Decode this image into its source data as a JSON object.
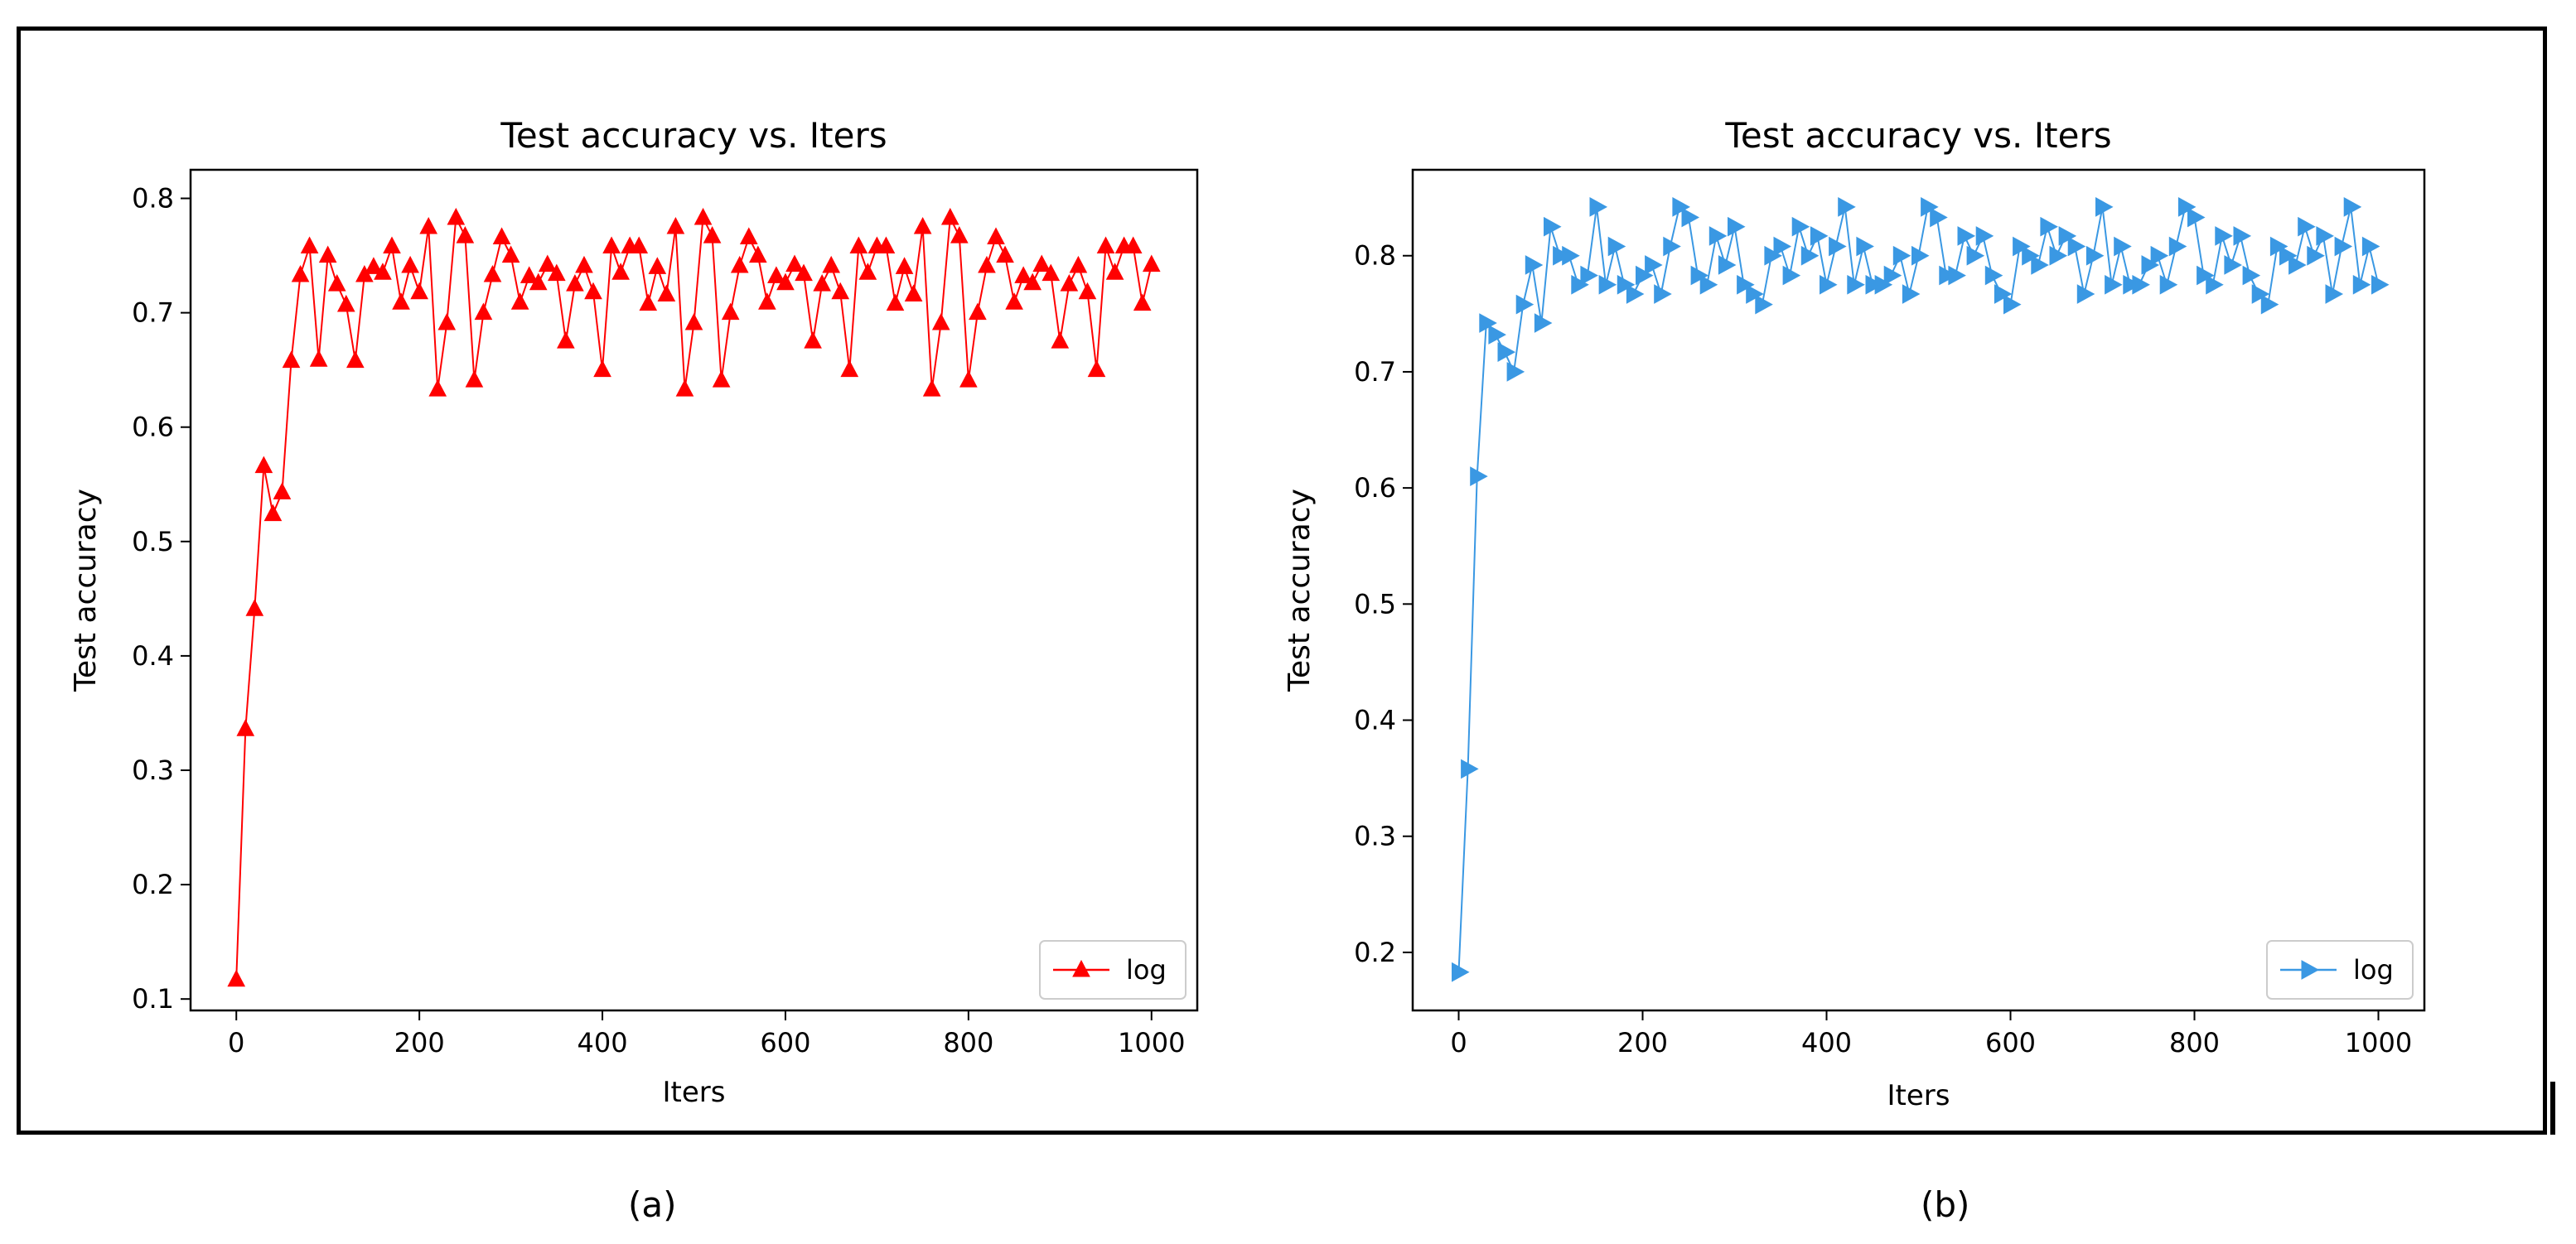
{
  "chart_data": [
    {
      "type": "line",
      "title": "Test accuracy  vs. Iters",
      "xlabel": "Iters",
      "ylabel": "Test accuracy",
      "xlim": [
        -50,
        1050
      ],
      "ylim": [
        0.09,
        0.825
      ],
      "xticks": [
        0,
        200,
        400,
        600,
        800,
        1000
      ],
      "xtick_labels": [
        "0",
        "200",
        "400",
        "600",
        "800",
        "1000"
      ],
      "yticks": [
        0.1,
        0.2,
        0.3,
        0.4,
        0.5,
        0.6,
        0.7,
        0.8
      ],
      "ytick_labels": [
        "0.1",
        "0.2",
        "0.3",
        "0.4",
        "0.5",
        "0.6",
        "0.7",
        "0.8"
      ],
      "legend": "lower-right",
      "caption": "(a)",
      "series": [
        {
          "name": "log",
          "color": "#ff0000",
          "marker": "triangle-up",
          "x": [
            0,
            10,
            20,
            30,
            40,
            50,
            60,
            70,
            80,
            90,
            100,
            110,
            120,
            130,
            140,
            150,
            160,
            170,
            180,
            190,
            200,
            210,
            220,
            230,
            240,
            250,
            260,
            270,
            280,
            290,
            300,
            310,
            320,
            330,
            340,
            350,
            360,
            370,
            380,
            390,
            400,
            410,
            420,
            430,
            440,
            450,
            460,
            470,
            480,
            490,
            500,
            510,
            520,
            530,
            540,
            550,
            560,
            570,
            580,
            590,
            600,
            610,
            620,
            630,
            640,
            650,
            660,
            670,
            680,
            690,
            700,
            710,
            720,
            730,
            740,
            750,
            760,
            770,
            780,
            790,
            800,
            810,
            820,
            830,
            840,
            850,
            860,
            870,
            880,
            890,
            900,
            910,
            920,
            930,
            940,
            950,
            960,
            970,
            980,
            990,
            1000
          ],
          "y": [
            0.117,
            0.336,
            0.441,
            0.566,
            0.524,
            0.543,
            0.658,
            0.733,
            0.758,
            0.659,
            0.75,
            0.725,
            0.707,
            0.658,
            0.733,
            0.74,
            0.735,
            0.758,
            0.709,
            0.741,
            0.718,
            0.775,
            0.633,
            0.691,
            0.783,
            0.767,
            0.641,
            0.7,
            0.733,
            0.766,
            0.75,
            0.709,
            0.732,
            0.726,
            0.742,
            0.734,
            0.675,
            0.725,
            0.741,
            0.718,
            0.65,
            0.758,
            0.735,
            0.758,
            0.758,
            0.708,
            0.74,
            0.716,
            0.775,
            0.633,
            0.691,
            0.783,
            0.767,
            0.641,
            0.7,
            0.741,
            0.766,
            0.75,
            0.709,
            0.732,
            0.726,
            0.742,
            0.734,
            0.675,
            0.725,
            0.741,
            0.718,
            0.65,
            0.758,
            0.735,
            0.758,
            0.758,
            0.708,
            0.74,
            0.716,
            0.775,
            0.633,
            0.691,
            0.783,
            0.767,
            0.641,
            0.7,
            0.741,
            0.766,
            0.75,
            0.709,
            0.732,
            0.726,
            0.742,
            0.734,
            0.675,
            0.725,
            0.741,
            0.718,
            0.65,
            0.758,
            0.735,
            0.758,
            0.758,
            0.708,
            0.742
          ]
        }
      ]
    },
    {
      "type": "line",
      "title": "Test accuracy  vs. Iters",
      "xlabel": "Iters",
      "ylabel": "Test accuracy",
      "xlim": [
        -50,
        1050
      ],
      "ylim": [
        0.15,
        0.874
      ],
      "xticks": [
        0,
        200,
        400,
        600,
        800,
        1000
      ],
      "xtick_labels": [
        "0",
        "200",
        "400",
        "600",
        "800",
        "1000"
      ],
      "yticks": [
        0.2,
        0.3,
        0.4,
        0.5,
        0.6,
        0.7,
        0.8
      ],
      "ytick_labels": [
        "0.2",
        "0.3",
        "0.4",
        "0.5",
        "0.6",
        "0.7",
        "0.8"
      ],
      "legend": "lower-right",
      "caption": "(b)",
      "series": [
        {
          "name": "log",
          "color": "#3a98e3",
          "marker": "triangle-right",
          "x": [
            0,
            10,
            20,
            30,
            40,
            50,
            60,
            70,
            80,
            90,
            100,
            110,
            120,
            130,
            140,
            150,
            160,
            170,
            180,
            190,
            200,
            210,
            220,
            230,
            240,
            250,
            260,
            270,
            280,
            290,
            300,
            310,
            320,
            330,
            340,
            350,
            360,
            370,
            380,
            390,
            400,
            410,
            420,
            430,
            440,
            450,
            460,
            470,
            480,
            490,
            500,
            510,
            520,
            530,
            540,
            550,
            560,
            570,
            580,
            590,
            600,
            610,
            620,
            630,
            640,
            650,
            660,
            670,
            680,
            690,
            700,
            710,
            720,
            730,
            740,
            750,
            760,
            770,
            780,
            790,
            800,
            810,
            820,
            830,
            840,
            850,
            860,
            870,
            880,
            890,
            900,
            910,
            920,
            930,
            940,
            950,
            960,
            970,
            980,
            990,
            1000
          ],
          "y": [
            0.183,
            0.358,
            0.61,
            0.742,
            0.732,
            0.717,
            0.7,
            0.758,
            0.792,
            0.742,
            0.825,
            0.8,
            0.8,
            0.775,
            0.783,
            0.842,
            0.775,
            0.808,
            0.775,
            0.767,
            0.783,
            0.792,
            0.767,
            0.808,
            0.842,
            0.833,
            0.783,
            0.775,
            0.817,
            0.792,
            0.825,
            0.775,
            0.767,
            0.758,
            0.8,
            0.808,
            0.783,
            0.825,
            0.8,
            0.817,
            0.775,
            0.808,
            0.842,
            0.775,
            0.808,
            0.775,
            0.775,
            0.783,
            0.8,
            0.767,
            0.8,
            0.842,
            0.833,
            0.783,
            0.783,
            0.817,
            0.8,
            0.817,
            0.783,
            0.767,
            0.758,
            0.808,
            0.8,
            0.792,
            0.825,
            0.8,
            0.817,
            0.808,
            0.767,
            0.8,
            0.842,
            0.775,
            0.808,
            0.775,
            0.775,
            0.792,
            0.8,
            0.775,
            0.808,
            0.842,
            0.833,
            0.783,
            0.775,
            0.817,
            0.792,
            0.817,
            0.783,
            0.767,
            0.758,
            0.808,
            0.8,
            0.792,
            0.825,
            0.8,
            0.817,
            0.767,
            0.808,
            0.842,
            0.775,
            0.808,
            0.775
          ]
        }
      ]
    }
  ]
}
